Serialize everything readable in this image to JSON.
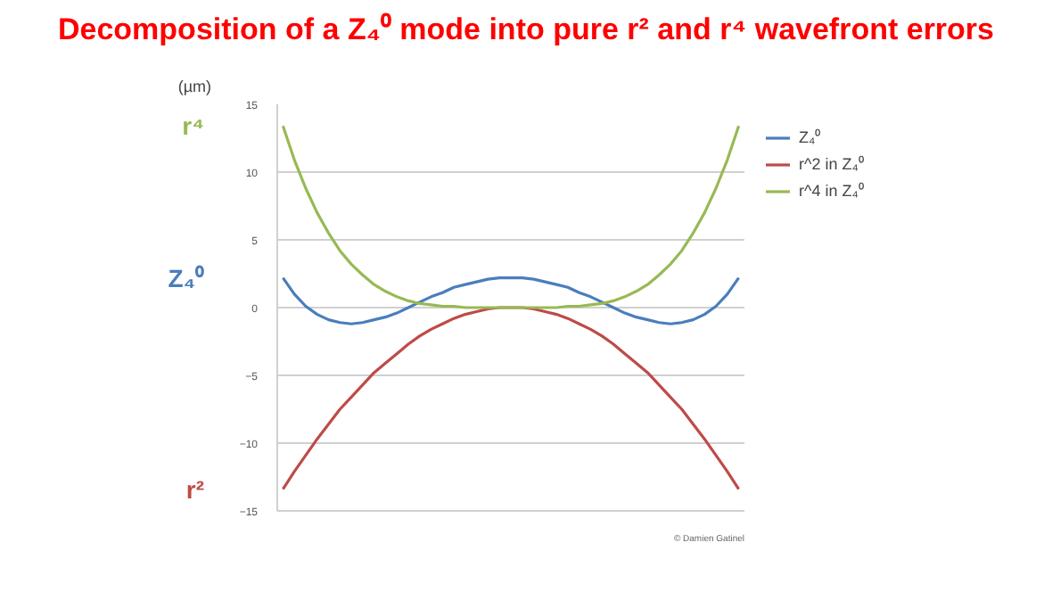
{
  "chart_data": {
    "type": "line",
    "title": "Decomposition of a Z₄⁰ mode into pure r² and r⁴ wavefront errors",
    "ylabel": "(µm)",
    "categories": [
      null,
      null,
      null,
      null,
      null,
      null,
      null,
      null,
      null,
      null,
      null,
      null,
      null,
      null,
      null,
      null,
      null,
      null,
      null,
      null,
      null,
      null,
      null,
      null,
      null,
      null,
      null,
      null,
      null,
      null,
      null,
      null,
      null,
      null,
      null,
      null,
      null,
      null,
      null,
      null,
      null
    ],
    "series": [
      {
        "name": "Z₄⁰",
        "color": "#4a7ebb",
        "values": [
          2.2,
          1.0,
          0.1,
          -0.5,
          -0.9,
          -1.1,
          -1.2,
          -1.1,
          -0.9,
          -0.7,
          -0.4,
          0,
          0.4,
          0.8,
          1.1,
          1.5,
          1.7,
          1.9,
          2.1,
          2.2,
          2.2,
          2.2,
          2.1,
          1.9,
          1.7,
          1.5,
          1.1,
          0.8,
          0.4,
          0,
          -0.4,
          -0.7,
          -0.9,
          -1.1,
          -1.2,
          -1.1,
          -0.9,
          -0.5,
          0.1,
          1.0,
          2.2
        ]
      },
      {
        "name": "r^2 in Z₄⁰",
        "color": "#be4b48",
        "values": [
          -13.4,
          -12.1,
          -10.9,
          -9.7,
          -8.6,
          -7.5,
          -6.6,
          -5.7,
          -4.8,
          -4.1,
          -3.4,
          -2.7,
          -2.1,
          -1.6,
          -1.2,
          -0.8,
          -0.5,
          -0.3,
          -0.1,
          0,
          0,
          0,
          -0.1,
          -0.3,
          -0.5,
          -0.8,
          -1.2,
          -1.6,
          -2.1,
          -2.7,
          -3.4,
          -4.1,
          -4.8,
          -5.7,
          -6.6,
          -7.5,
          -8.6,
          -9.7,
          -10.9,
          -12.1,
          -13.4
        ]
      },
      {
        "name": "r^4 in Z₄⁰",
        "color": "#98b954",
        "values": [
          13.4,
          10.9,
          8.8,
          7.0,
          5.5,
          4.2,
          3.2,
          2.4,
          1.7,
          1.2,
          0.8,
          0.5,
          0.3,
          0.2,
          0.1,
          0.1,
          0,
          0,
          0,
          0,
          0,
          0,
          0,
          0,
          0,
          0.1,
          0.1,
          0.2,
          0.3,
          0.5,
          0.8,
          1.2,
          1.7,
          2.4,
          3.2,
          4.2,
          5.5,
          7.0,
          8.8,
          10.9,
          13.4
        ]
      }
    ],
    "ylim": [
      -15,
      15
    ],
    "yticks": [
      -15,
      -10,
      -5,
      0,
      5,
      10,
      15
    ],
    "grid": "y",
    "legend": "right",
    "marker": "none",
    "line_style": "solid",
    "annotations": [
      "Z₄⁰",
      "r²",
      "r⁴",
      "© Damien Gatinel"
    ]
  }
}
